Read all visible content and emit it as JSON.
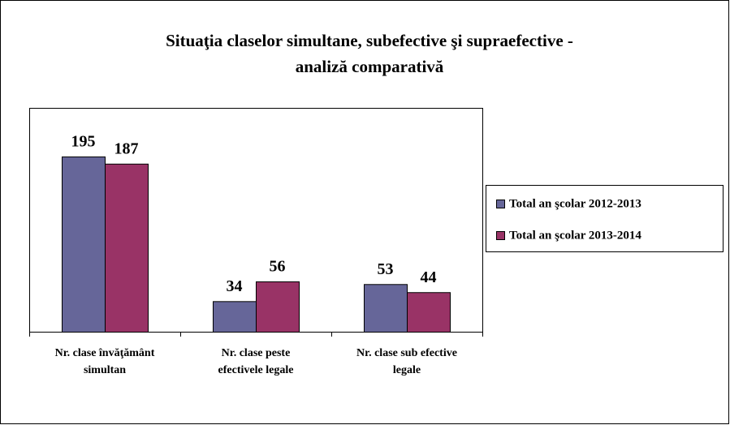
{
  "chart_data": {
    "type": "bar",
    "title": [
      "Situaţia claselor simultane, subefective şi supraefective -",
      "analiză comparativă"
    ],
    "categories": [
      [
        "Nr. clase învăţământ",
        "simultan"
      ],
      [
        "Nr. clase peste",
        "efectivele legale"
      ],
      [
        "Nr. clase sub efective",
        "legale"
      ]
    ],
    "series": [
      {
        "name": "Total an şcolar 2012-2013",
        "color": "#666699",
        "values": [
          195,
          34,
          53
        ]
      },
      {
        "name": "Total an şcolar 2013-2014",
        "color": "#993366",
        "values": [
          187,
          56,
          44
        ]
      }
    ],
    "legend": "right"
  }
}
